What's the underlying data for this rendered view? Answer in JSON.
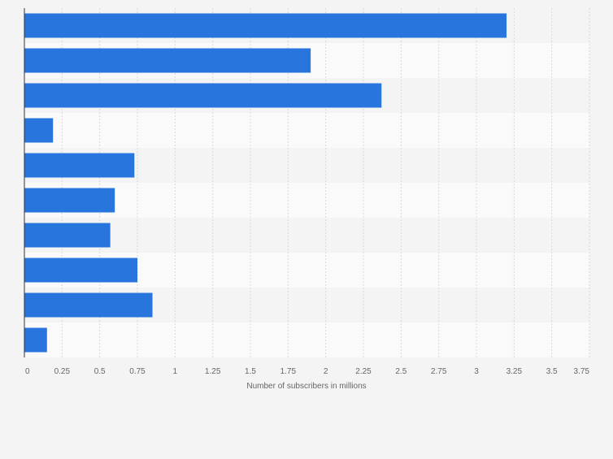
{
  "chart_data": {
    "type": "bar",
    "orientation": "horizontal",
    "categories": [
      "",
      "",
      "",
      "",
      "",
      "",
      "",
      "",
      "",
      ""
    ],
    "values": [
      3.2,
      1.9,
      2.37,
      0.19,
      0.73,
      0.6,
      0.57,
      0.75,
      0.85,
      0.15
    ],
    "title": "",
    "xlabel": "Number of subscribers in millions",
    "ylabel": "",
    "xlim": [
      0,
      3.75
    ],
    "xticks": [
      0,
      0.25,
      0.5,
      0.75,
      1,
      1.25,
      1.5,
      1.75,
      2,
      2.25,
      2.5,
      2.75,
      3,
      3.25,
      3.5,
      3.75
    ],
    "xtick_labels": [
      "0",
      "0.25",
      "0.5",
      "0.75",
      "1",
      "1.25",
      "1.5",
      "1.75",
      "2",
      "2.25",
      "2.5",
      "2.75",
      "3",
      "3.25",
      "3.5",
      "3.75"
    ],
    "grid": true,
    "legend": "none",
    "colors": {
      "bar": "#2876dd",
      "background": "#f4f4f4",
      "band_light": "#fafafa",
      "band_dark": "#f4f4f4",
      "grid": "#d9d9d9",
      "axis": "#333333",
      "text": "#666666"
    }
  }
}
